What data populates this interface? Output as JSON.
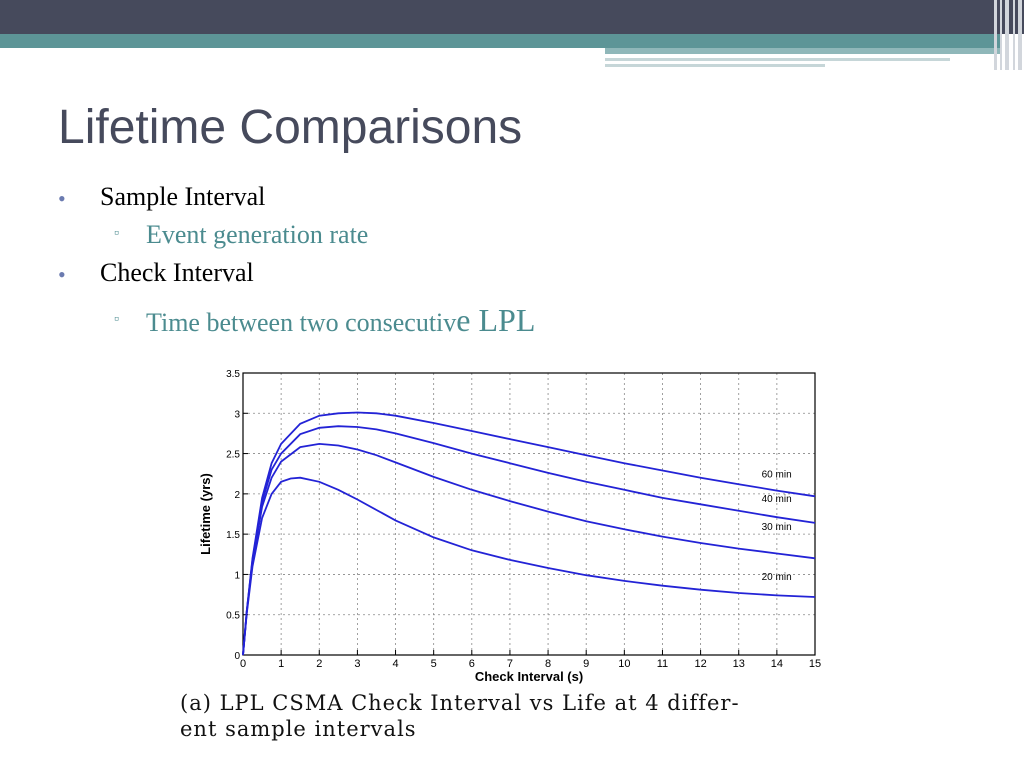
{
  "slide": {
    "title": "Lifetime Comparisons",
    "bullets": [
      {
        "text": "Sample Interval",
        "sub": "Event generation rate"
      },
      {
        "text": "Check Interval",
        "sub_pre": "Time between two consecutiv",
        "sub_post": "e LPL"
      }
    ],
    "caption_line1": "(a)  LPL CSMA Check Interval vs Life at 4 differ-",
    "caption_line2": "ent sample intervals"
  },
  "chart_data": {
    "type": "line",
    "xlabel": "Check Interval (s)",
    "ylabel": "Lifetime (yrs)",
    "xlim": [
      0,
      15
    ],
    "ylim": [
      0,
      3.5
    ],
    "xticks": [
      "0",
      "1",
      "2",
      "3",
      "4",
      "5",
      "6",
      "7",
      "8",
      "9",
      "10",
      "11",
      "12",
      "13",
      "14",
      "15"
    ],
    "yticks": [
      "0",
      "0.5",
      "1",
      "1.5",
      "2",
      "2.5",
      "3",
      "3.5"
    ],
    "grid": true,
    "line_color": "#2323d6",
    "series": [
      {
        "name": "60 min",
        "x": [
          0,
          0.1,
          0.25,
          0.5,
          0.75,
          1,
          1.5,
          2,
          2.5,
          3,
          3.5,
          4,
          5,
          6,
          7,
          8,
          9,
          10,
          11,
          12,
          13,
          14,
          15
        ],
        "y": [
          0,
          0.55,
          1.2,
          1.95,
          2.38,
          2.62,
          2.87,
          2.97,
          3.0,
          3.01,
          3.0,
          2.97,
          2.88,
          2.78,
          2.68,
          2.58,
          2.48,
          2.38,
          2.29,
          2.2,
          2.12,
          2.04,
          1.97
        ]
      },
      {
        "name": "40 min",
        "x": [
          0,
          0.1,
          0.25,
          0.5,
          0.75,
          1,
          1.5,
          2,
          2.5,
          3,
          3.5,
          4,
          5,
          6,
          7,
          8,
          9,
          10,
          11,
          12,
          13,
          14,
          15
        ],
        "y": [
          0,
          0.55,
          1.18,
          1.9,
          2.3,
          2.5,
          2.74,
          2.82,
          2.84,
          2.83,
          2.8,
          2.75,
          2.63,
          2.5,
          2.38,
          2.26,
          2.15,
          2.05,
          1.95,
          1.87,
          1.79,
          1.71,
          1.64
        ]
      },
      {
        "name": "30 min",
        "x": [
          0,
          0.1,
          0.25,
          0.5,
          0.75,
          1,
          1.5,
          2,
          2.5,
          3,
          3.5,
          4,
          5,
          6,
          7,
          8,
          9,
          10,
          11,
          12,
          13,
          14,
          15
        ],
        "y": [
          0,
          0.54,
          1.15,
          1.84,
          2.2,
          2.4,
          2.58,
          2.62,
          2.6,
          2.55,
          2.48,
          2.39,
          2.21,
          2.05,
          1.91,
          1.78,
          1.66,
          1.56,
          1.47,
          1.39,
          1.32,
          1.26,
          1.2
        ]
      },
      {
        "name": "20 min",
        "x": [
          0,
          0.1,
          0.25,
          0.5,
          0.75,
          1,
          1.25,
          1.5,
          2,
          2.5,
          3,
          3.5,
          4,
          5,
          6,
          7,
          8,
          9,
          10,
          11,
          12,
          13,
          14,
          15
        ],
        "y": [
          0,
          0.52,
          1.1,
          1.7,
          2.0,
          2.15,
          2.19,
          2.2,
          2.15,
          2.05,
          1.93,
          1.8,
          1.67,
          1.46,
          1.3,
          1.18,
          1.08,
          0.99,
          0.92,
          0.86,
          0.81,
          0.77,
          0.74,
          0.72
        ]
      }
    ]
  }
}
